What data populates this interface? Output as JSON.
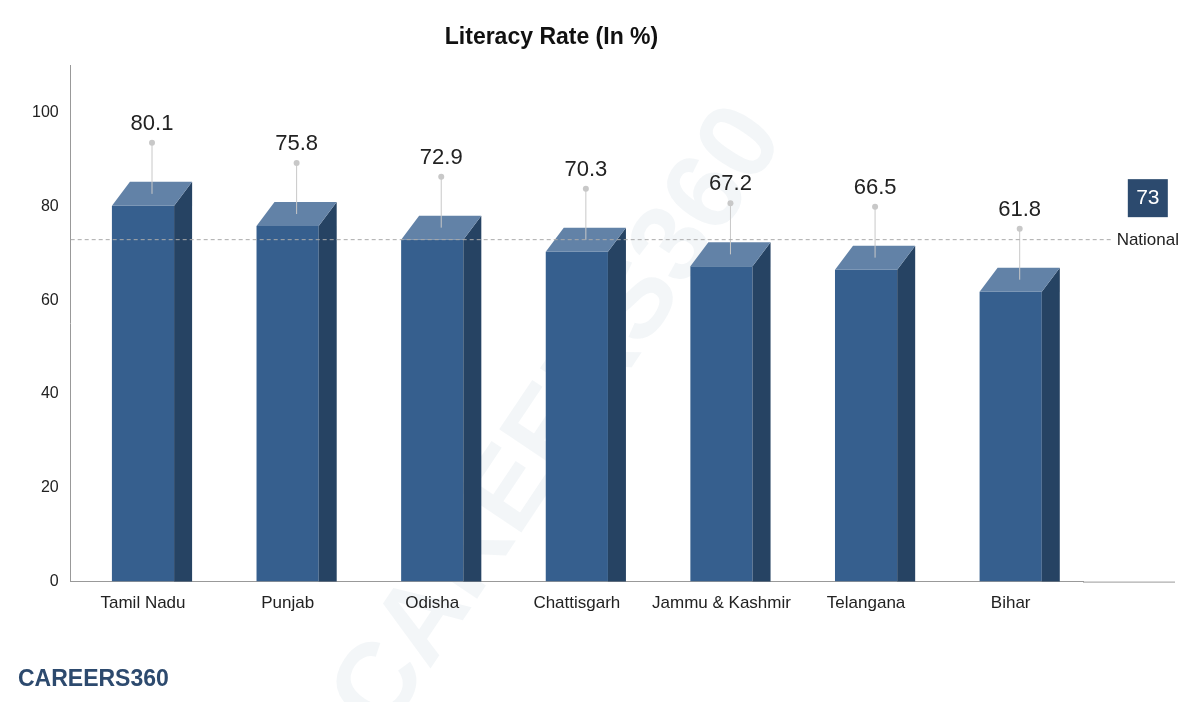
{
  "chart_data": {
    "type": "bar",
    "title": "Literacy Rate (In %)",
    "categories": [
      "Tamil Nadu",
      "Punjab",
      "Odisha",
      "Chattisgarh",
      "Jammu & Kashmir",
      "Telangana",
      "Bihar"
    ],
    "values": [
      80.1,
      75.8,
      72.9,
      70.3,
      67.2,
      66.5,
      61.8
    ],
    "color": "#365f8e",
    "ylim": [
      0,
      110
    ],
    "yticks": [
      0,
      20,
      40,
      60,
      80,
      100
    ],
    "grid": false,
    "data_labels": true,
    "annotations": [
      {
        "type": "hline",
        "value": 73,
        "label": "National"
      }
    ],
    "logo": "CAREERS360",
    "watermark": "CAREERS360"
  }
}
